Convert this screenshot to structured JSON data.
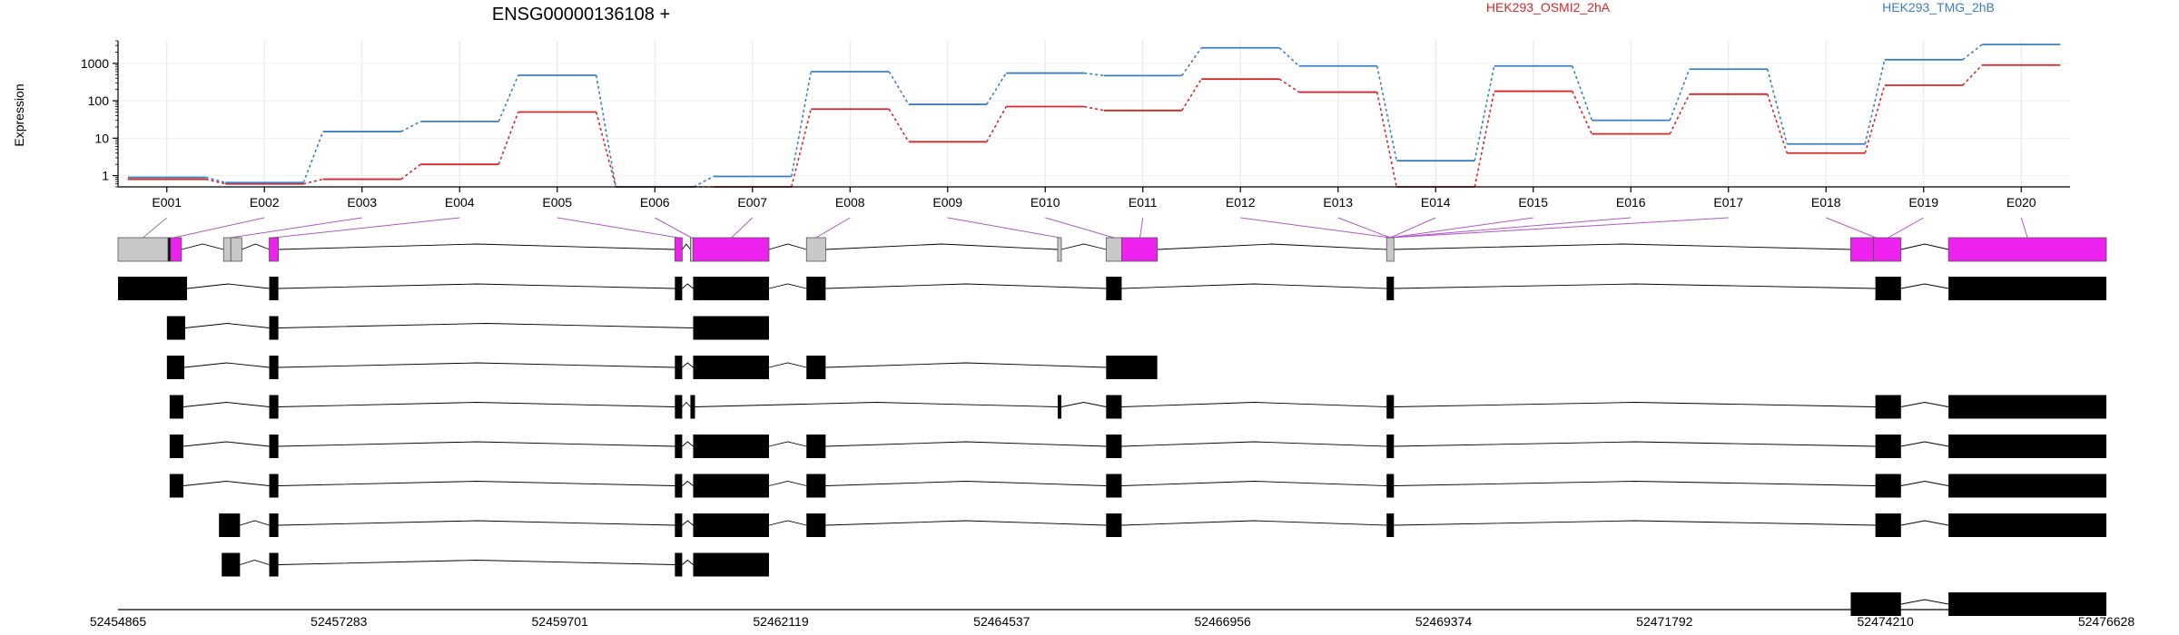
{
  "chart_data": {
    "type": "line",
    "title": "ENSG00000136108 +",
    "ylabel": "Expression",
    "yscale": "log",
    "ylim": [
      0.5,
      4000
    ],
    "yticks": [
      1,
      10,
      100,
      1000
    ],
    "ytick_labels": [
      "1",
      "10",
      "100",
      "1000"
    ],
    "grid": true,
    "legend_position": "top-right",
    "categories": [
      "E001",
      "E002",
      "E003",
      "E004",
      "E005",
      "E006",
      "E007",
      "E008",
      "E009",
      "E010",
      "E011",
      "E012",
      "E013",
      "E014",
      "E015",
      "E016",
      "E017",
      "E018",
      "E019",
      "E020"
    ],
    "series": [
      {
        "name": "HEK293_OSMI2_2hA",
        "color": "#d62728",
        "values": [
          0.8,
          0.6,
          0.8,
          2,
          50,
          0.5,
          0.5,
          60,
          8,
          70,
          55,
          380,
          170,
          0.5,
          180,
          13,
          150,
          4,
          260,
          900
        ]
      },
      {
        "name": "HEK293_TMG_2hB",
        "color": "#3a7fc1",
        "values": [
          0.9,
          0.65,
          15,
          28,
          480,
          0.5,
          0.95,
          600,
          80,
          550,
          470,
          2600,
          850,
          2.5,
          850,
          30,
          700,
          7,
          1250,
          3200
        ]
      }
    ],
    "genomic_axis": {
      "range": [
        52454865,
        52476628
      ],
      "tick_labels": [
        "52454865",
        "52457283",
        "52459701",
        "52462119",
        "52464537",
        "52466956",
        "52469374",
        "52471792",
        "52474210",
        "52476628"
      ]
    },
    "exon_links": [
      {
        "id": "E001",
        "exon": [
          52454865,
          52455412
        ]
      },
      {
        "id": "E002",
        "exon": [
          52455412,
          52455540
        ]
      },
      {
        "id": "E003",
        "exon": [
          52455970,
          52456230
        ]
      },
      {
        "id": "E004",
        "exon": [
          52456510,
          52456620
        ]
      },
      {
        "id": "E005",
        "exon": [
          52460960,
          52461030
        ]
      },
      {
        "id": "E006",
        "exon": [
          52461110,
          52461170
        ]
      },
      {
        "id": "E007",
        "exon": [
          52461170,
          52461990
        ]
      },
      {
        "id": "E008",
        "exon": [
          52462400,
          52462610
        ]
      },
      {
        "id": "E009",
        "exon": [
          52465150,
          52465190
        ]
      },
      {
        "id": "E010",
        "exon": [
          52465680,
          52465850
        ]
      },
      {
        "id": "E011",
        "exon": [
          52465850,
          52466250
        ]
      },
      {
        "id": "E012",
        "exon": [
          52468750,
          52468830
        ]
      },
      {
        "id": "E013",
        "exon": [
          52468750,
          52468830
        ]
      },
      {
        "id": "E014",
        "exon": [
          52468750,
          52468830
        ]
      },
      {
        "id": "E015",
        "exon": [
          52468750,
          52468830
        ]
      },
      {
        "id": "E016",
        "exon": [
          52468750,
          52468830
        ]
      },
      {
        "id": "E017",
        "exon": [
          52468750,
          52468830
        ]
      },
      {
        "id": "E018",
        "exon": [
          52473830,
          52474380
        ]
      },
      {
        "id": "E019",
        "exon": [
          52474100,
          52474380
        ]
      },
      {
        "id": "E020",
        "exon": [
          52474900,
          52476628
        ]
      }
    ],
    "gene_model": [
      [
        52454865,
        52455412,
        "gray"
      ],
      [
        52455412,
        52455440,
        "black"
      ],
      [
        52455440,
        52455560,
        "magenta"
      ],
      [
        52456020,
        52456100,
        "gray"
      ],
      [
        52456100,
        52456220,
        "gray"
      ],
      [
        52456520,
        52456620,
        "magenta"
      ],
      [
        52460960,
        52461040,
        "magenta"
      ],
      [
        52461130,
        52461160,
        "gray"
      ],
      [
        52461160,
        52461990,
        "magenta"
      ],
      [
        52462400,
        52462610,
        "gray"
      ],
      [
        52465150,
        52465190,
        "gray"
      ],
      [
        52465680,
        52465850,
        "gray"
      ],
      [
        52465850,
        52466240,
        "magenta"
      ],
      [
        52468750,
        52468830,
        "gray"
      ],
      [
        52473830,
        52474080,
        "magenta"
      ],
      [
        52474080,
        52474380,
        "magenta"
      ],
      [
        52474900,
        52476628,
        "magenta"
      ]
    ],
    "transcripts": [
      [
        [
          52454865,
          52455620
        ],
        [
          52456520,
          52456620
        ],
        [
          52460960,
          52461040
        ],
        [
          52461160,
          52461990
        ],
        [
          52462400,
          52462610
        ],
        [
          52465680,
          52465850
        ],
        [
          52468750,
          52468830
        ],
        [
          52474100,
          52474380
        ],
        [
          52474900,
          52476628
        ]
      ],
      [
        [
          52455400,
          52455600
        ],
        [
          52456520,
          52456620
        ],
        [
          52461160,
          52461990
        ]
      ],
      [
        [
          52455400,
          52455590
        ],
        [
          52456520,
          52456620
        ],
        [
          52460960,
          52461040
        ],
        [
          52461160,
          52461990
        ],
        [
          52462400,
          52462610
        ],
        [
          52465680,
          52466240
        ]
      ],
      [
        [
          52455430,
          52455580
        ],
        [
          52456520,
          52456620
        ],
        [
          52460960,
          52461040
        ],
        [
          52461130,
          52461180
        ],
        [
          52465150,
          52465190
        ],
        [
          52465680,
          52465850
        ],
        [
          52468750,
          52468830
        ],
        [
          52474100,
          52474380
        ],
        [
          52474900,
          52476628
        ]
      ],
      [
        [
          52455430,
          52455580
        ],
        [
          52456520,
          52456620
        ],
        [
          52460960,
          52461040
        ],
        [
          52461160,
          52461990
        ],
        [
          52462400,
          52462610
        ],
        [
          52465680,
          52465850
        ],
        [
          52468750,
          52468830
        ],
        [
          52474100,
          52474380
        ],
        [
          52474900,
          52476628
        ]
      ],
      [
        [
          52455430,
          52455580
        ],
        [
          52456520,
          52456620
        ],
        [
          52460960,
          52461040
        ],
        [
          52461160,
          52461990
        ],
        [
          52462400,
          52462610
        ],
        [
          52465680,
          52465850
        ],
        [
          52468750,
          52468830
        ],
        [
          52474100,
          52474380
        ],
        [
          52474900,
          52476628
        ]
      ],
      [
        [
          52455970,
          52456200
        ],
        [
          52456520,
          52456620
        ],
        [
          52460960,
          52461040
        ],
        [
          52461160,
          52461990
        ],
        [
          52462400,
          52462610
        ],
        [
          52465680,
          52465850
        ],
        [
          52468750,
          52468830
        ],
        [
          52474100,
          52474380
        ],
        [
          52474900,
          52476628
        ]
      ],
      [
        [
          52456000,
          52456200
        ],
        [
          52456520,
          52456620
        ],
        [
          52460960,
          52461040
        ],
        [
          52461160,
          52461990
        ]
      ],
      [
        [
          52473830,
          52474380
        ],
        [
          52474900,
          52476628
        ]
      ]
    ]
  }
}
